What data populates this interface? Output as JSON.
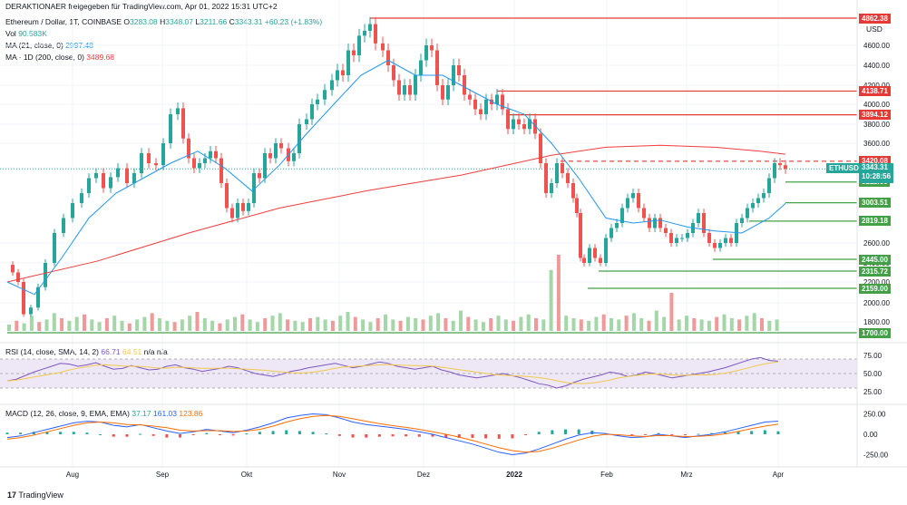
{
  "header": {
    "share_line": "DERAKTIONAER freigegeben für TradingView.com, Apr 01, 2022 15:31 UTC+2",
    "symbol": "Ethereum / Dollar, 1T, COINBASE",
    "o_label": "O",
    "o": "3283.08",
    "h_label": "H",
    "h": "3348.07",
    "l_label": "L",
    "l": "3211.66",
    "c_label": "C",
    "c": "3343.31",
    "change": "+60.23 (+1.83%)",
    "vol_label": "Vol",
    "vol": "90.583K",
    "ma21_label": "MA (21, close, 0)",
    "ma21": "2997.48",
    "ma200_label": "MA · 1D (200, close, 0)",
    "ma200": "3489.68",
    "currency": "USD"
  },
  "rsi_header": {
    "label": "RSI (14, close, SMA, 14, 2)",
    "v1": "66.71",
    "v2": "64.51",
    "na": "n/a  n/a"
  },
  "macd_header": {
    "label": "MACD (12, 26, close, 9, EMA, EMA)",
    "v1": "37.17",
    "v2": "161.03",
    "v3": "123.86"
  },
  "footer": {
    "brand": "TradingView"
  },
  "price_tags": [
    {
      "label": "4862.38",
      "kind": "res",
      "dashed": false
    },
    {
      "label": "4138.71",
      "kind": "res",
      "dashed": false
    },
    {
      "label": "3894.12",
      "kind": "res",
      "dashed": false
    },
    {
      "label": "3420.08",
      "kind": "res",
      "dashed": true
    },
    {
      "label": "3211.66",
      "kind": "sup",
      "dashed": false
    },
    {
      "label": "3003.51",
      "kind": "sup",
      "dashed": false
    },
    {
      "label": "2819.18",
      "kind": "sup",
      "dashed": false
    },
    {
      "label": "2445.00",
      "kind": "sup",
      "dashed": false
    },
    {
      "label": "2315.72",
      "kind": "sup",
      "dashed": false
    },
    {
      "label": "2159.00",
      "kind": "sup",
      "dashed": false
    },
    {
      "label": "1700.00",
      "kind": "sup",
      "dashed": false
    }
  ],
  "last_price": {
    "symbol": "ETHUSD",
    "price": "3343.31",
    "countdown": "10:28:56"
  },
  "colors": {
    "up": "#26a69a",
    "down": "#ef5350",
    "ma21": "#2196f3",
    "ma200": "#f23c3c",
    "res": "#e53935",
    "sup": "#43a047",
    "rsi": "#7e57c2",
    "rsi_bg": "#ede7f6",
    "macd": "#2962ff",
    "signal": "#ff6d00"
  },
  "chart_data": {
    "type": "candlestick",
    "price_axis": {
      "ticks": [
        "4600.00",
        "4400.00",
        "4200.00",
        "4000.00",
        "3800.00",
        "3600.00",
        "2600.00",
        "2400.00",
        "2200.00",
        "2000.00",
        "1800.00"
      ],
      "range": [
        1700,
        4900
      ]
    },
    "time_axis": [
      "Aug",
      "Sep",
      "Okt",
      "Nov",
      "Dez",
      "2022",
      "Feb",
      "Mrz",
      "Apr"
    ],
    "rsi_axis": [
      "75.00",
      "50.00",
      "25.00"
    ],
    "macd_axis": [
      "250.00",
      "0.00",
      "-250.00"
    ],
    "price_path": [
      [
        0,
        2380
      ],
      [
        6,
        2300
      ],
      [
        12,
        2200
      ],
      [
        18,
        1880
      ],
      [
        26,
        1950
      ],
      [
        34,
        2150
      ],
      [
        42,
        2400
      ],
      [
        52,
        2700
      ],
      [
        62,
        2850
      ],
      [
        72,
        3000
      ],
      [
        82,
        3100
      ],
      [
        90,
        3250
      ],
      [
        98,
        3300
      ],
      [
        106,
        3150
      ],
      [
        114,
        3260
      ],
      [
        122,
        3350
      ],
      [
        132,
        3200
      ],
      [
        140,
        3300
      ],
      [
        148,
        3500
      ],
      [
        156,
        3400
      ],
      [
        164,
        3380
      ],
      [
        172,
        3600
      ],
      [
        180,
        3900
      ],
      [
        188,
        3960
      ],
      [
        194,
        3650
      ],
      [
        200,
        3450
      ],
      [
        206,
        3350
      ],
      [
        212,
        3400
      ],
      [
        218,
        3450
      ],
      [
        224,
        3520
      ],
      [
        230,
        3450
      ],
      [
        236,
        3200
      ],
      [
        242,
        2950
      ],
      [
        248,
        2850
      ],
      [
        254,
        3000
      ],
      [
        260,
        2920
      ],
      [
        266,
        3000
      ],
      [
        272,
        3300
      ],
      [
        278,
        3250
      ],
      [
        284,
        3500
      ],
      [
        290,
        3450
      ],
      [
        296,
        3600
      ],
      [
        302,
        3550
      ],
      [
        310,
        3420
      ],
      [
        316,
        3500
      ],
      [
        322,
        3800
      ],
      [
        330,
        3850
      ],
      [
        336,
        4000
      ],
      [
        342,
        4050
      ],
      [
        350,
        4150
      ],
      [
        358,
        4250
      ],
      [
        364,
        4350
      ],
      [
        370,
        4300
      ],
      [
        376,
        4550
      ],
      [
        382,
        4500
      ],
      [
        388,
        4700
      ],
      [
        394,
        4750
      ],
      [
        400,
        4820
      ],
      [
        406,
        4620
      ],
      [
        414,
        4550
      ],
      [
        420,
        4400
      ],
      [
        426,
        4250
      ],
      [
        432,
        4100
      ],
      [
        438,
        4200
      ],
      [
        444,
        4100
      ],
      [
        450,
        4300
      ],
      [
        456,
        4450
      ],
      [
        462,
        4600
      ],
      [
        468,
        4550
      ],
      [
        474,
        4200
      ],
      [
        480,
        4050
      ],
      [
        486,
        4200
      ],
      [
        492,
        4400
      ],
      [
        498,
        4300
      ],
      [
        504,
        4100
      ],
      [
        510,
        4050
      ],
      [
        516,
        3950
      ],
      [
        522,
        3900
      ],
      [
        528,
        4050
      ],
      [
        534,
        4000
      ],
      [
        540,
        4100
      ],
      [
        546,
        3950
      ],
      [
        552,
        3750
      ],
      [
        558,
        3850
      ],
      [
        564,
        3800
      ],
      [
        570,
        3750
      ],
      [
        576,
        3850
      ],
      [
        582,
        3700
      ],
      [
        588,
        3400
      ],
      [
        594,
        3100
      ],
      [
        600,
        3200
      ],
      [
        606,
        3400
      ],
      [
        612,
        3300
      ],
      [
        618,
        3200
      ],
      [
        624,
        3050
      ],
      [
        628,
        2900
      ],
      [
        632,
        2450
      ],
      [
        636,
        2400
      ],
      [
        642,
        2550
      ],
      [
        648,
        2450
      ],
      [
        654,
        2400
      ],
      [
        660,
        2650
      ],
      [
        666,
        2750
      ],
      [
        672,
        2800
      ],
      [
        678,
        2950
      ],
      [
        684,
        3050
      ],
      [
        690,
        3100
      ],
      [
        696,
        2950
      ],
      [
        702,
        2850
      ],
      [
        708,
        2750
      ],
      [
        714,
        2850
      ],
      [
        720,
        2750
      ],
      [
        726,
        2700
      ],
      [
        732,
        2600
      ],
      [
        738,
        2650
      ],
      [
        744,
        2650
      ],
      [
        750,
        2700
      ],
      [
        756,
        2800
      ],
      [
        762,
        2900
      ],
      [
        768,
        2700
      ],
      [
        774,
        2600
      ],
      [
        780,
        2550
      ],
      [
        786,
        2600
      ],
      [
        792,
        2650
      ],
      [
        798,
        2600
      ],
      [
        804,
        2800
      ],
      [
        810,
        2850
      ],
      [
        816,
        2950
      ],
      [
        822,
        3000
      ],
      [
        828,
        3050
      ],
      [
        834,
        3100
      ],
      [
        840,
        3250
      ],
      [
        846,
        3400
      ],
      [
        852,
        3380
      ],
      [
        858,
        3343
      ]
    ],
    "ma21_path": [
      [
        0,
        2200
      ],
      [
        30,
        2080
      ],
      [
        60,
        2450
      ],
      [
        90,
        2850
      ],
      [
        120,
        3100
      ],
      [
        150,
        3250
      ],
      [
        180,
        3400
      ],
      [
        210,
        3520
      ],
      [
        240,
        3350
      ],
      [
        270,
        3120
      ],
      [
        300,
        3380
      ],
      [
        330,
        3700
      ],
      [
        360,
        4000
      ],
      [
        390,
        4300
      ],
      [
        420,
        4450
      ],
      [
        450,
        4300
      ],
      [
        480,
        4300
      ],
      [
        510,
        4150
      ],
      [
        540,
        4000
      ],
      [
        570,
        3900
      ],
      [
        600,
        3600
      ],
      [
        630,
        3250
      ],
      [
        660,
        2850
      ],
      [
        690,
        2800
      ],
      [
        720,
        2830
      ],
      [
        750,
        2760
      ],
      [
        780,
        2720
      ],
      [
        810,
        2700
      ],
      [
        840,
        2850
      ],
      [
        858,
        2997
      ]
    ],
    "ma200_path": [
      [
        0,
        2200
      ],
      [
        100,
        2420
      ],
      [
        200,
        2700
      ],
      [
        300,
        2950
      ],
      [
        400,
        3130
      ],
      [
        500,
        3280
      ],
      [
        600,
        3480
      ],
      [
        660,
        3560
      ],
      [
        720,
        3580
      ],
      [
        780,
        3560
      ],
      [
        830,
        3520
      ],
      [
        858,
        3490
      ]
    ],
    "volume_heights": [
      5,
      8,
      6,
      12,
      7,
      9,
      14,
      10,
      8,
      11,
      13,
      9,
      7,
      10,
      12,
      8,
      6,
      9,
      11,
      14,
      10,
      8,
      7,
      9,
      12,
      15,
      10,
      8,
      6,
      9,
      11,
      13,
      9,
      7,
      10,
      12,
      14,
      9,
      8,
      7,
      10,
      11,
      9,
      8,
      12,
      15,
      11,
      9,
      7,
      10,
      13,
      9,
      8,
      11,
      10,
      9,
      12,
      14,
      10,
      8,
      16,
      11,
      9,
      7,
      10,
      12,
      9,
      8,
      11,
      13,
      10,
      9,
      48,
      60,
      12,
      10,
      9,
      8,
      11,
      13,
      10,
      9,
      12,
      14,
      10,
      8,
      16,
      11,
      30,
      9,
      12,
      10,
      9,
      8,
      11,
      13,
      10,
      9,
      12,
      14,
      10,
      8,
      9,
      11
    ],
    "rsi_values": [
      40,
      42,
      47,
      52,
      56,
      60,
      64,
      63,
      60,
      62,
      65,
      60,
      56,
      57,
      61,
      58,
      55,
      56,
      60,
      62,
      58,
      56,
      53,
      55,
      57,
      60,
      58,
      54,
      50,
      48,
      46,
      49,
      53,
      55,
      58,
      60,
      62,
      64,
      61,
      58,
      60,
      63,
      66,
      64,
      60,
      58,
      56,
      58,
      60,
      55,
      52,
      48,
      46,
      44,
      46,
      48,
      50,
      47,
      44,
      40,
      36,
      34,
      30,
      33,
      38,
      42,
      45,
      48,
      52,
      50,
      46,
      48,
      52,
      50,
      47,
      44,
      46,
      48,
      50,
      52,
      55,
      58,
      62,
      66,
      70,
      72,
      68,
      67
    ],
    "macd_line": [
      -40,
      -20,
      20,
      60,
      100,
      140,
      160,
      150,
      110,
      90,
      120,
      80,
      40,
      10,
      30,
      60,
      40,
      20,
      50,
      90,
      140,
      200,
      230,
      250,
      240,
      200,
      150,
      120,
      100,
      80,
      60,
      30,
      0,
      -40,
      -80,
      -120,
      -170,
      -220,
      -250,
      -230,
      -180,
      -120,
      -60,
      -10,
      20,
      10,
      -20,
      -40,
      -30,
      0,
      -20,
      -40,
      -20,
      0,
      30,
      70,
      110,
      150,
      161
    ],
    "signal_line": [
      -60,
      -40,
      -10,
      30,
      70,
      110,
      140,
      150,
      140,
      120,
      115,
      100,
      80,
      50,
      40,
      45,
      45,
      35,
      40,
      60,
      100,
      150,
      190,
      220,
      230,
      220,
      190,
      160,
      130,
      105,
      85,
      60,
      30,
      0,
      -35,
      -75,
      -120,
      -165,
      -200,
      -220,
      -210,
      -170,
      -120,
      -70,
      -25,
      0,
      -5,
      -20,
      -28,
      -15,
      -18,
      -28,
      -25,
      -15,
      5,
      35,
      70,
      100,
      124
    ],
    "macd_hist": [
      20,
      20,
      30,
      30,
      30,
      30,
      20,
      0,
      -30,
      -30,
      5,
      -20,
      -40,
      -40,
      -10,
      15,
      -5,
      -15,
      10,
      30,
      40,
      50,
      40,
      30,
      10,
      -20,
      -40,
      -40,
      -30,
      -25,
      -25,
      -30,
      -30,
      -40,
      -45,
      -45,
      -50,
      -55,
      -50,
      -10,
      30,
      50,
      60,
      60,
      45,
      10,
      -15,
      -20,
      -2,
      15,
      -2,
      -12,
      5,
      15,
      25,
      35,
      40,
      50,
      37
    ]
  }
}
